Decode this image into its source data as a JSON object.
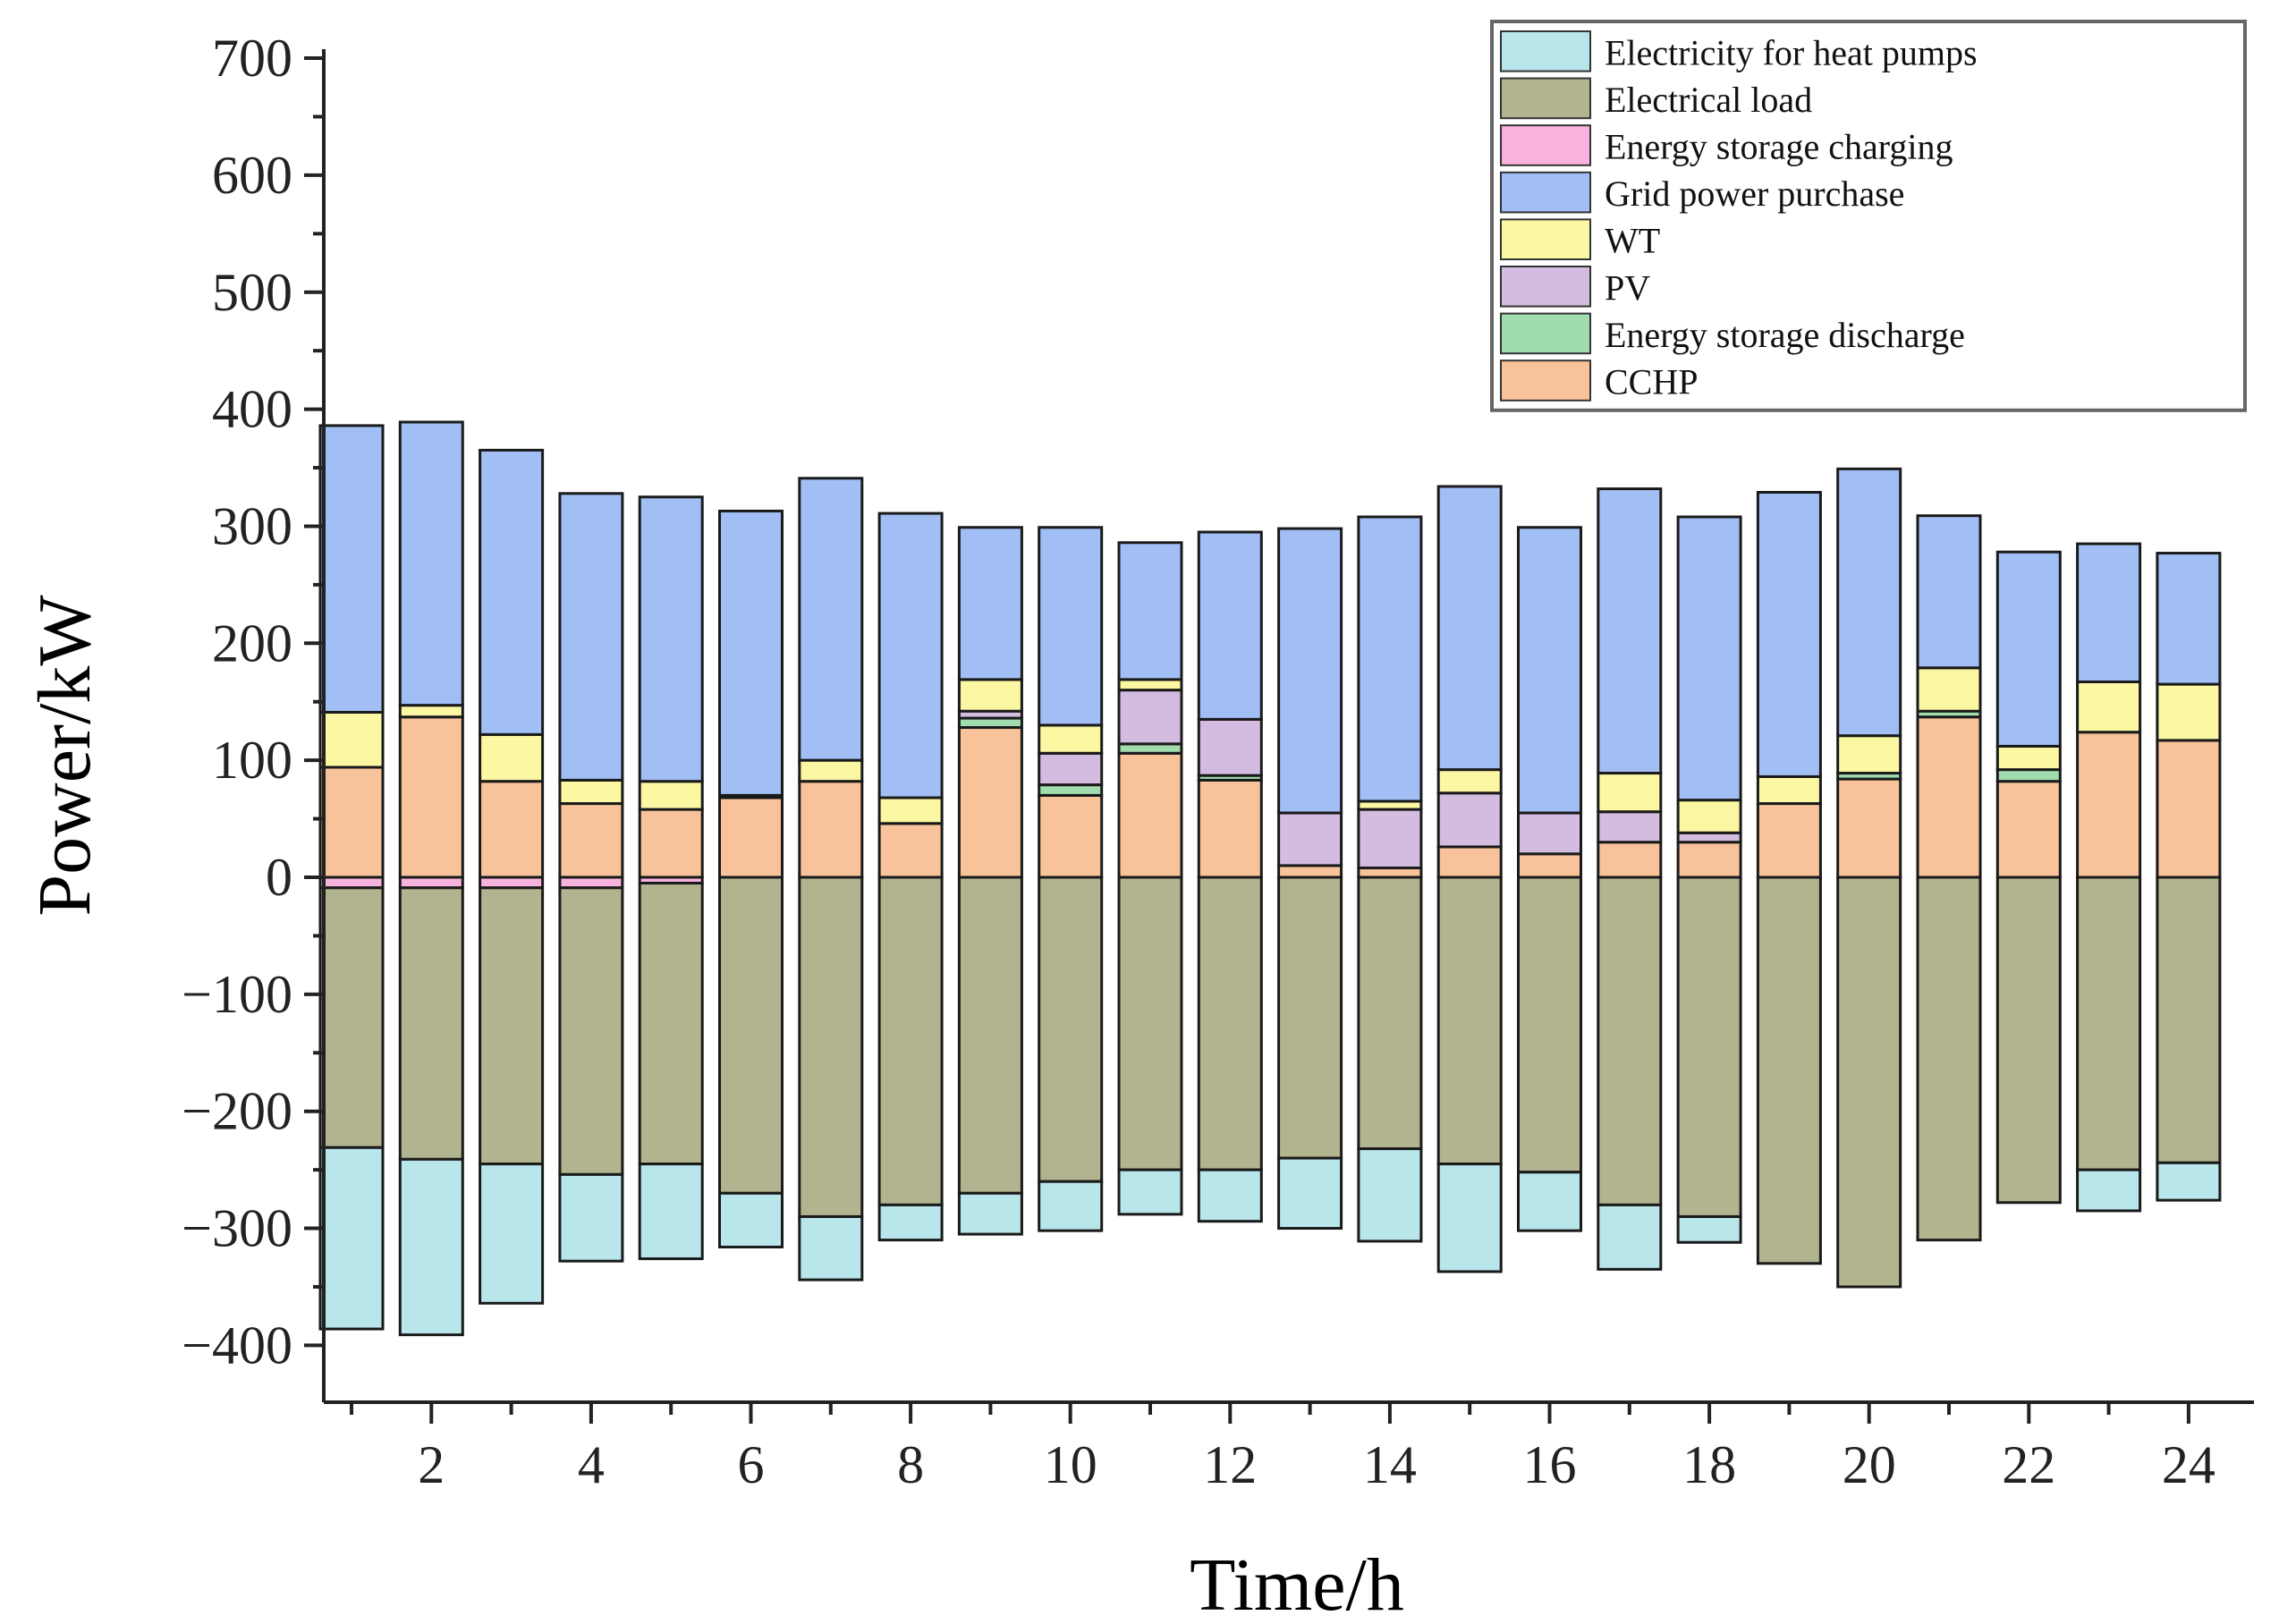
{
  "chart_data": {
    "type": "bar",
    "stacked": true,
    "title": "",
    "xlabel": "Time/h",
    "ylabel": "Power/kW",
    "ylim": [
      -450,
      700
    ],
    "xlim": [
      0.5,
      24.5
    ],
    "yticks": [
      -400,
      -300,
      -200,
      -100,
      0,
      100,
      200,
      300,
      400,
      500,
      600,
      700
    ],
    "xticks": [
      2,
      4,
      6,
      8,
      10,
      12,
      14,
      16,
      18,
      20,
      22,
      24
    ],
    "grid": false,
    "legend_position": "top-right",
    "categories": [
      1,
      2,
      3,
      4,
      5,
      6,
      7,
      8,
      9,
      10,
      11,
      12,
      13,
      14,
      15,
      16,
      17,
      18,
      19,
      20,
      21,
      22,
      23,
      24
    ],
    "series": [
      {
        "name": "Electricity for heat pumps",
        "color": "#b8e6ea",
        "stack": "negative",
        "values": [
          -155,
          -150,
          -119,
          -74,
          -81,
          -46,
          -54,
          -30,
          -35,
          -42,
          -38,
          -44,
          -60,
          -79,
          -92,
          -50,
          -55,
          -22,
          0,
          0,
          0,
          0,
          -35,
          -32
        ]
      },
      {
        "name": "Electrical load",
        "color": "#b1b48e",
        "stack": "negative",
        "values": [
          -222,
          -232,
          -236,
          -245,
          -240,
          -270,
          -290,
          -280,
          -270,
          -260,
          -250,
          -250,
          -240,
          -232,
          -245,
          -252,
          -280,
          -290,
          -330,
          -350,
          -310,
          -278,
          -250,
          -244
        ]
      },
      {
        "name": "Energy storage charging",
        "color": "#f7b2de",
        "stack": "negative",
        "values": [
          -9,
          -9,
          -9,
          -9,
          -5,
          0,
          0,
          0,
          0,
          0,
          0,
          0,
          0,
          0,
          0,
          0,
          0,
          0,
          0,
          0,
          0,
          0,
          0,
          0
        ]
      },
      {
        "name": "Grid power purchase",
        "color": "#a1bff4",
        "stack": "positive",
        "values": [
          245,
          242,
          243,
          245,
          243,
          243,
          241,
          243,
          130,
          169,
          117,
          160,
          243,
          243,
          242,
          244,
          243,
          242,
          243,
          228,
          130,
          166,
          118,
          112
        ]
      },
      {
        "name": "WT",
        "color": "#fbf7a3",
        "stack": "positive",
        "values": [
          47,
          10,
          40,
          20,
          24,
          2,
          18,
          22,
          27,
          24,
          9,
          0,
          0,
          7,
          20,
          0,
          33,
          28,
          23,
          32,
          37,
          20,
          43,
          48
        ]
      },
      {
        "name": "PV",
        "color": "#d3bce0",
        "stack": "positive",
        "values": [
          0,
          0,
          0,
          0,
          0,
          0,
          0,
          0,
          6,
          27,
          46,
          48,
          45,
          50,
          46,
          35,
          26,
          8,
          0,
          0,
          0,
          0,
          0,
          0
        ]
      },
      {
        "name": "Energy storage discharge",
        "color": "#a1dcae",
        "stack": "positive",
        "values": [
          0,
          0,
          0,
          0,
          0,
          0,
          0,
          0,
          8,
          9,
          8,
          4,
          0,
          0,
          0,
          0,
          0,
          0,
          0,
          5,
          5,
          10,
          0,
          0
        ]
      },
      {
        "name": "CCHP",
        "color": "#f8c39a",
        "stack": "positive",
        "values": [
          94,
          137,
          82,
          63,
          58,
          68,
          82,
          46,
          128,
          70,
          106,
          83,
          10,
          8,
          26,
          20,
          30,
          30,
          63,
          84,
          137,
          82,
          124,
          117
        ]
      }
    ]
  }
}
